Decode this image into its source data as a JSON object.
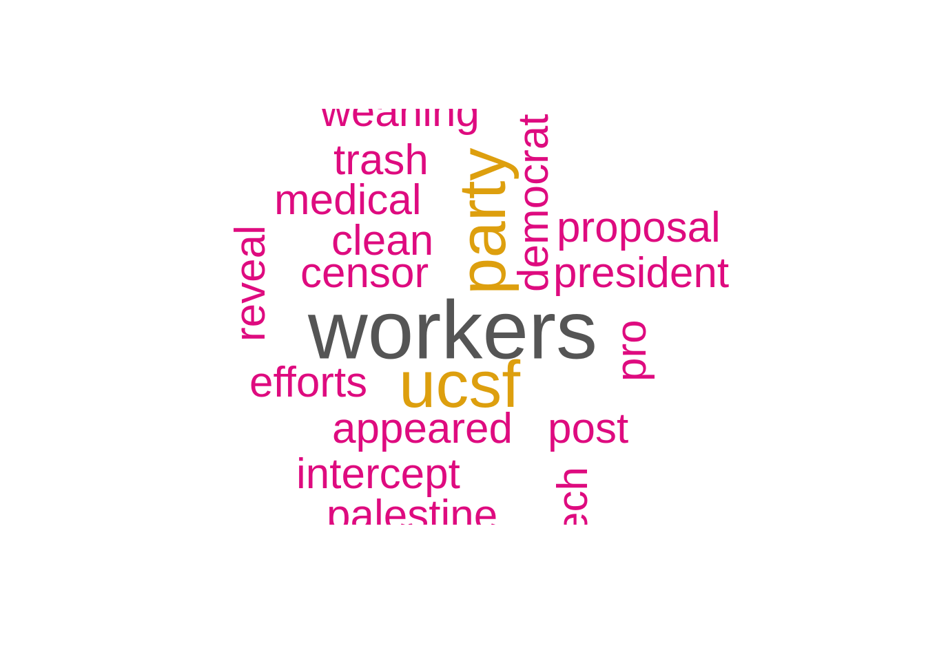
{
  "word_cloud": {
    "colors": {
      "top": "#555555",
      "second": "#DD9F0E",
      "other": "#DE0B7F",
      "background": "#FFFFFF"
    },
    "words": [
      {
        "id": "weaning",
        "text": "weaning",
        "tier": "other",
        "rotated": false
      },
      {
        "id": "trash",
        "text": "trash",
        "tier": "other",
        "rotated": false
      },
      {
        "id": "medical",
        "text": "medical",
        "tier": "other",
        "rotated": false
      },
      {
        "id": "clean",
        "text": "clean",
        "tier": "other",
        "rotated": false
      },
      {
        "id": "censor",
        "text": "censor",
        "tier": "other",
        "rotated": false
      },
      {
        "id": "party",
        "text": "party",
        "tier": "second",
        "rotated": true
      },
      {
        "id": "democrat",
        "text": "democrat",
        "tier": "other",
        "rotated": true
      },
      {
        "id": "proposal",
        "text": "proposal",
        "tier": "other",
        "rotated": false
      },
      {
        "id": "president",
        "text": "president",
        "tier": "other",
        "rotated": false
      },
      {
        "id": "reveal",
        "text": "reveal",
        "tier": "other",
        "rotated": true
      },
      {
        "id": "workers",
        "text": "workers",
        "tier": "top",
        "rotated": false
      },
      {
        "id": "pro",
        "text": "pro",
        "tier": "other",
        "rotated": true
      },
      {
        "id": "efforts",
        "text": "efforts",
        "tier": "other",
        "rotated": false
      },
      {
        "id": "ucsf",
        "text": "ucsf",
        "tier": "second",
        "rotated": false
      },
      {
        "id": "appeared",
        "text": "appeared",
        "tier": "other",
        "rotated": false
      },
      {
        "id": "post",
        "text": "post",
        "tier": "other",
        "rotated": false
      },
      {
        "id": "intercept",
        "text": "intercept",
        "tier": "other",
        "rotated": false
      },
      {
        "id": "speech",
        "text": "speech",
        "tier": "other",
        "rotated": true
      },
      {
        "id": "palestine",
        "text": "palestine",
        "tier": "other",
        "rotated": false
      }
    ]
  }
}
